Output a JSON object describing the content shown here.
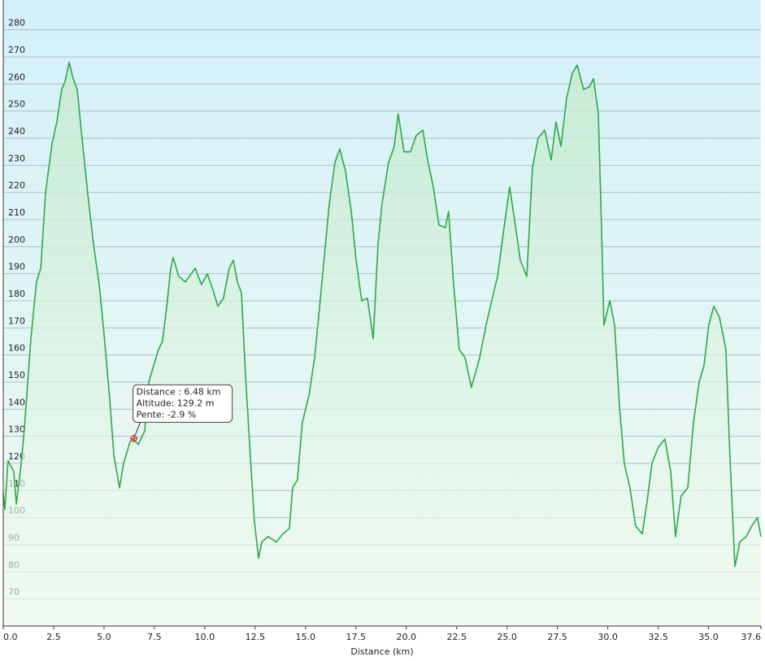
{
  "chart_data": {
    "type": "line",
    "xlabel": "Distance  (km)",
    "x": [
      0,
      0.08,
      0.24,
      0.52,
      0.65,
      0.89,
      1.05,
      1.37,
      1.65,
      1.86,
      2.1,
      2.42,
      2.66,
      2.9,
      3.07,
      3.27,
      3.47,
      3.67,
      3.87,
      4.2,
      4.48,
      4.76,
      5.0,
      5.28,
      5.49,
      5.77,
      5.97,
      6.29,
      6.45,
      6.7,
      7.02,
      7.22,
      7.7,
      7.9,
      8.1,
      8.31,
      8.43,
      8.71,
      9.04,
      9.52,
      9.84,
      10.13,
      10.41,
      10.65,
      10.93,
      11.21,
      11.42,
      11.62,
      11.82,
      12.02,
      12.26,
      12.46,
      12.67,
      12.83,
      13.15,
      13.55,
      13.87,
      14.2,
      14.36,
      14.6,
      14.84,
      15.17,
      15.45,
      15.69,
      15.89,
      16.18,
      16.46,
      16.7,
      16.98,
      17.27,
      17.51,
      17.79,
      18.07,
      18.36,
      18.6,
      18.8,
      19.12,
      19.4,
      19.6,
      19.89,
      20.21,
      20.49,
      20.82,
      21.06,
      21.34,
      21.62,
      21.94,
      22.1,
      22.35,
      22.63,
      22.92,
      23.23,
      23.64,
      23.96,
      24.24,
      24.53,
      24.85,
      25.13,
      25.37,
      25.66,
      25.98,
      26.26,
      26.54,
      26.87,
      27.19,
      27.43,
      27.67,
      27.96,
      28.24,
      28.48,
      28.8,
      29.09,
      29.29,
      29.53,
      29.69,
      29.81,
      30.1,
      30.34,
      30.58,
      30.82,
      31.1,
      31.38,
      31.71,
      31.95,
      32.19,
      32.51,
      32.83,
      33.12,
      33.36,
      33.64,
      33.97,
      34.25,
      34.53,
      34.77,
      35.01,
      35.26,
      35.54,
      35.86,
      36.06,
      36.31,
      36.55,
      36.87,
      37.15,
      37.43,
      37.6
    ],
    "values": [
      109,
      103,
      121,
      117,
      105,
      120,
      133,
      166,
      187,
      192,
      220,
      238,
      246,
      258,
      261,
      268,
      262,
      258,
      243,
      219,
      201,
      186,
      168,
      144,
      123,
      111,
      120,
      128,
      129,
      127,
      132,
      150,
      162,
      165,
      177,
      192,
      196,
      189,
      187,
      192,
      186,
      190,
      184,
      178,
      181,
      192,
      195,
      187,
      183,
      153,
      123,
      99,
      85,
      91,
      93,
      91,
      94,
      96,
      111,
      114,
      135,
      145,
      159,
      177,
      193,
      216,
      231,
      236,
      228,
      213,
      195,
      180,
      181,
      166,
      201,
      216,
      231,
      237,
      249,
      235,
      235,
      241,
      243,
      232,
      222,
      208,
      207,
      213,
      186,
      162,
      159,
      148,
      159,
      171,
      180,
      189,
      207,
      222,
      210,
      195,
      189,
      229,
      240,
      243,
      232,
      246,
      237,
      255,
      264,
      267,
      258,
      259,
      262,
      249,
      207,
      171,
      180,
      171,
      141,
      120,
      111,
      97,
      94,
      106,
      120,
      126,
      129,
      117,
      93,
      108,
      111,
      135,
      150,
      156,
      171,
      178,
      174,
      162,
      123,
      82,
      91,
      93,
      97,
      100,
      93
    ],
    "color": "#2ea84a",
    "xlim": [
      0,
      37.6
    ],
    "ylim": [
      60,
      291
    ],
    "xticks": [
      {
        "value": 0,
        "label": "0.0"
      },
      2.5,
      {
        "value": 5,
        "label": "5.0"
      },
      7.5,
      {
        "value": 10,
        "label": "10.0"
      },
      12.5,
      {
        "value": 15,
        "label": "15.0"
      },
      17.5,
      {
        "value": 20,
        "label": "20.0"
      },
      22.5,
      {
        "value": 25,
        "label": "25.0"
      },
      27.5,
      {
        "value": 30,
        "label": "30.0"
      },
      32.5,
      {
        "value": 35,
        "label": "35.0"
      },
      37.6
    ],
    "yticks": [
      70,
      80,
      90,
      100,
      110,
      120,
      130,
      140,
      150,
      160,
      170,
      180,
      190,
      200,
      210,
      220,
      230,
      240,
      250,
      260,
      270,
      280
    ],
    "grid": true,
    "annotation": {
      "lines": [
        "Distance : 6.48 km",
        "Altitude: 129.2 m",
        "Pente: -2.9 %"
      ],
      "x": 6.48,
      "y": 129.2
    }
  }
}
